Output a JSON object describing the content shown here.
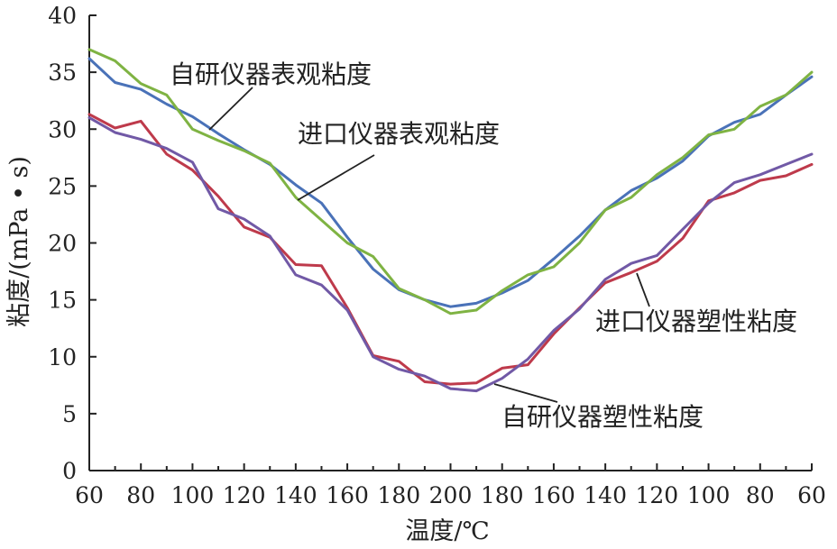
{
  "chart_data": {
    "type": "line",
    "title": "",
    "xlabel": "温度/℃",
    "ylabel": "粘度/(mPa • s)",
    "x_tick_labels": [
      "60",
      "80",
      "100",
      "120",
      "140",
      "160",
      "180",
      "200",
      "180",
      "160",
      "140",
      "120",
      "100",
      "80",
      "60"
    ],
    "y_ticks": [
      0,
      5,
      10,
      15,
      20,
      25,
      30,
      35,
      40
    ],
    "ylim": [
      0,
      40
    ],
    "grid": false,
    "legend": "none",
    "x_note": "temperature rises 60→200 ℃ then falls 200→60 ℃ in 10 ℃ steps",
    "x_steps": [
      "60",
      "70",
      "80",
      "90",
      "100",
      "110",
      "120",
      "130",
      "140",
      "150",
      "160",
      "170",
      "180",
      "190",
      "200",
      "190",
      "180",
      "170",
      "160",
      "150",
      "140",
      "130",
      "120",
      "110",
      "100",
      "90",
      "80",
      "70",
      "60"
    ],
    "series": [
      {
        "name": "自研仪器表观粘度",
        "color": "#4a72b8",
        "values": [
          36.2,
          34.1,
          33.5,
          32.2,
          31.1,
          29.6,
          28.2,
          26.9,
          25.1,
          23.5,
          20.5,
          17.7,
          15.9,
          15.0,
          14.4,
          14.7,
          15.6,
          16.7,
          18.6,
          20.6,
          22.9,
          24.6,
          25.7,
          27.2,
          29.4,
          30.6,
          31.3,
          33.0,
          34.6
        ]
      },
      {
        "name": "进口仪器表观粘度",
        "color": "#7fb343",
        "values": [
          37.0,
          36.0,
          34.0,
          33.0,
          30.0,
          29.0,
          28.1,
          27.0,
          24.0,
          22.0,
          20.0,
          18.8,
          16.0,
          15.0,
          13.8,
          14.1,
          15.8,
          17.2,
          17.9,
          20.0,
          22.9,
          24.0,
          26.0,
          27.5,
          29.5,
          30.0,
          32.0,
          33.0,
          35.0
        ]
      },
      {
        "name": "自研仪器塑性粘度",
        "color": "#be3a4b",
        "values": [
          31.3,
          30.1,
          30.7,
          27.8,
          26.4,
          24.1,
          21.4,
          20.5,
          18.1,
          18.0,
          14.3,
          10.1,
          9.6,
          7.8,
          7.6,
          7.7,
          9.0,
          9.3,
          12.0,
          14.3,
          16.5,
          17.4,
          18.4,
          20.4,
          23.7,
          24.4,
          25.5,
          25.9,
          26.9
        ]
      },
      {
        "name": "进口仪器塑性粘度",
        "color": "#7159a6",
        "values": [
          31.0,
          29.7,
          29.1,
          28.3,
          27.1,
          23.0,
          22.1,
          20.6,
          17.2,
          16.3,
          14.1,
          10.0,
          8.9,
          8.3,
          7.2,
          7.0,
          8.1,
          9.8,
          12.3,
          14.2,
          16.8,
          18.2,
          18.9,
          21.2,
          23.5,
          25.3,
          26.0,
          26.9,
          27.8
        ]
      }
    ],
    "annotations": [
      {
        "text": "自研仪器表观粘度",
        "series": 0
      },
      {
        "text": "进口仪器表观粘度",
        "series": 1
      },
      {
        "text": "进口仪器塑性粘度",
        "series": 3
      },
      {
        "text": "自研仪器塑性粘度",
        "series": 2
      }
    ]
  }
}
